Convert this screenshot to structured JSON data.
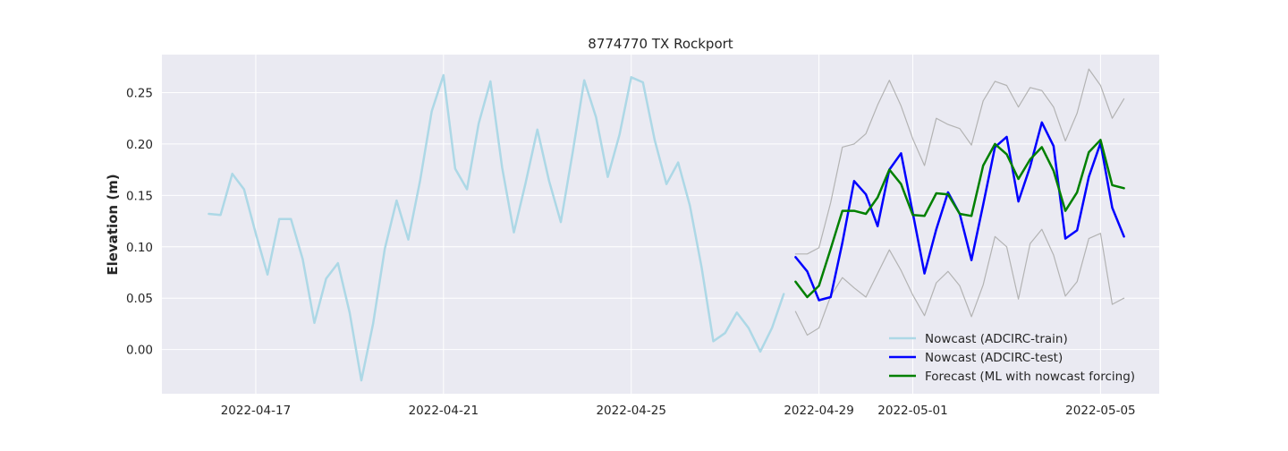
{
  "chart_data": {
    "type": "line",
    "title": "8774770 TX Rockport",
    "xlabel": "",
    "ylabel": "Elevation (m)",
    "x_axis": {
      "type": "date",
      "range": [
        "2022-04-15T00:00",
        "2022-05-06T06:00"
      ],
      "ticks": [
        "2022-04-17",
        "2022-04-21",
        "2022-04-25",
        "2022-04-29",
        "2022-05-01",
        "2022-05-05"
      ]
    },
    "y_axis": {
      "range": [
        -0.043,
        0.287
      ],
      "ticks": [
        0.0,
        0.05,
        0.1,
        0.15,
        0.2,
        0.25
      ],
      "tick_labels": [
        "0.00",
        "0.05",
        "0.10",
        "0.15",
        "0.20",
        "0.25"
      ]
    },
    "grid": true,
    "legend_position": "lower-right",
    "series": [
      {
        "name": "Nowcast (ADCIRC-train)",
        "color": "#add8e6",
        "x": [
          "2022-04-16T00:00",
          "2022-04-16T06:00",
          "2022-04-16T12:00",
          "2022-04-16T18:00",
          "2022-04-17T00:00",
          "2022-04-17T06:00",
          "2022-04-17T12:00",
          "2022-04-17T18:00",
          "2022-04-18T00:00",
          "2022-04-18T06:00",
          "2022-04-18T12:00",
          "2022-04-18T18:00",
          "2022-04-19T00:00",
          "2022-04-19T06:00",
          "2022-04-19T12:00",
          "2022-04-19T18:00",
          "2022-04-20T00:00",
          "2022-04-20T06:00",
          "2022-04-20T12:00",
          "2022-04-20T18:00",
          "2022-04-21T00:00",
          "2022-04-21T06:00",
          "2022-04-21T12:00",
          "2022-04-21T18:00",
          "2022-04-22T00:00",
          "2022-04-22T06:00",
          "2022-04-22T12:00",
          "2022-04-22T18:00",
          "2022-04-23T00:00",
          "2022-04-23T06:00",
          "2022-04-23T12:00",
          "2022-04-23T18:00",
          "2022-04-24T00:00",
          "2022-04-24T06:00",
          "2022-04-24T12:00",
          "2022-04-24T18:00",
          "2022-04-25T00:00",
          "2022-04-25T06:00",
          "2022-04-25T12:00",
          "2022-04-25T18:00",
          "2022-04-26T00:00",
          "2022-04-26T06:00",
          "2022-04-26T12:00",
          "2022-04-26T18:00",
          "2022-04-27T00:00",
          "2022-04-27T06:00",
          "2022-04-27T12:00",
          "2022-04-27T18:00",
          "2022-04-28T00:00",
          "2022-04-28T06:00"
        ],
        "values": [
          0.132,
          0.131,
          0.171,
          0.156,
          0.113,
          0.073,
          0.127,
          0.127,
          0.088,
          0.026,
          0.069,
          0.084,
          0.036,
          -0.03,
          0.025,
          0.098,
          0.145,
          0.107,
          0.164,
          0.232,
          0.267,
          0.176,
          0.156,
          0.22,
          0.261,
          0.177,
          0.114,
          0.162,
          0.214,
          0.164,
          0.124,
          0.191,
          0.262,
          0.226,
          0.168,
          0.209,
          0.265,
          0.26,
          0.204,
          0.161,
          0.182,
          0.14,
          0.08,
          0.008,
          0.016,
          0.036,
          0.021,
          -0.002,
          0.021,
          0.054
        ]
      },
      {
        "name": "Nowcast (ADCIRC-test)",
        "color": "#0000ff",
        "x": [
          "2022-04-28T12:00",
          "2022-04-28T18:00",
          "2022-04-29T00:00",
          "2022-04-29T06:00",
          "2022-04-29T12:00",
          "2022-04-29T18:00",
          "2022-04-30T00:00",
          "2022-04-30T06:00",
          "2022-04-30T12:00",
          "2022-04-30T18:00",
          "2022-05-01T00:00",
          "2022-05-01T06:00",
          "2022-05-01T12:00",
          "2022-05-01T18:00",
          "2022-05-02T00:00",
          "2022-05-02T06:00",
          "2022-05-02T12:00",
          "2022-05-02T18:00",
          "2022-05-03T00:00",
          "2022-05-03T06:00",
          "2022-05-03T12:00",
          "2022-05-03T18:00",
          "2022-05-04T00:00",
          "2022-05-04T06:00",
          "2022-05-04T12:00",
          "2022-05-04T18:00",
          "2022-05-05T00:00",
          "2022-05-05T06:00",
          "2022-05-05T12:00"
        ],
        "values": [
          0.09,
          0.076,
          0.048,
          0.051,
          0.104,
          0.164,
          0.151,
          0.12,
          0.175,
          0.191,
          0.133,
          0.074,
          0.117,
          0.153,
          0.132,
          0.087,
          0.141,
          0.197,
          0.207,
          0.144,
          0.178,
          0.221,
          0.198,
          0.108,
          0.116,
          0.168,
          0.201,
          0.138,
          0.11
        ]
      },
      {
        "name": "Forecast (ML with nowcast forcing)",
        "color": "#008000",
        "x": [
          "2022-04-28T12:00",
          "2022-04-28T18:00",
          "2022-04-29T00:00",
          "2022-04-29T06:00",
          "2022-04-29T12:00",
          "2022-04-29T18:00",
          "2022-04-30T00:00",
          "2022-04-30T06:00",
          "2022-04-30T12:00",
          "2022-04-30T18:00",
          "2022-05-01T00:00",
          "2022-05-01T06:00",
          "2022-05-01T12:00",
          "2022-05-01T18:00",
          "2022-05-02T00:00",
          "2022-05-02T06:00",
          "2022-05-02T12:00",
          "2022-05-02T18:00",
          "2022-05-03T00:00",
          "2022-05-03T06:00",
          "2022-05-03T12:00",
          "2022-05-03T18:00",
          "2022-05-04T00:00",
          "2022-05-04T06:00",
          "2022-05-04T12:00",
          "2022-05-04T18:00",
          "2022-05-05T00:00",
          "2022-05-05T06:00",
          "2022-05-05T12:00"
        ],
        "values": [
          0.066,
          0.051,
          0.062,
          0.098,
          0.135,
          0.135,
          0.132,
          0.148,
          0.175,
          0.161,
          0.131,
          0.13,
          0.152,
          0.151,
          0.132,
          0.13,
          0.179,
          0.2,
          0.19,
          0.166,
          0.185,
          0.197,
          0.174,
          0.135,
          0.153,
          0.192,
          0.204,
          0.16,
          0.157
        ]
      },
      {
        "name": "",
        "role": "upper-bound",
        "color": "#b3b3b3",
        "x": [
          "2022-04-28T12:00",
          "2022-04-28T18:00",
          "2022-04-29T00:00",
          "2022-04-29T06:00",
          "2022-04-29T12:00",
          "2022-04-29T18:00",
          "2022-04-30T00:00",
          "2022-04-30T06:00",
          "2022-04-30T12:00",
          "2022-04-30T18:00",
          "2022-05-01T00:00",
          "2022-05-01T06:00",
          "2022-05-01T12:00",
          "2022-05-01T18:00",
          "2022-05-02T00:00",
          "2022-05-02T06:00",
          "2022-05-02T12:00",
          "2022-05-02T18:00",
          "2022-05-03T00:00",
          "2022-05-03T06:00",
          "2022-05-03T12:00",
          "2022-05-03T18:00",
          "2022-05-04T00:00",
          "2022-05-04T06:00",
          "2022-05-04T12:00",
          "2022-05-04T18:00",
          "2022-05-05T00:00",
          "2022-05-05T06:00",
          "2022-05-05T12:00"
        ],
        "values": [
          0.093,
          0.093,
          0.099,
          0.143,
          0.197,
          0.2,
          0.21,
          0.238,
          0.262,
          0.237,
          0.205,
          0.179,
          0.225,
          0.219,
          0.215,
          0.199,
          0.242,
          0.261,
          0.257,
          0.236,
          0.255,
          0.252,
          0.236,
          0.203,
          0.23,
          0.273,
          0.257,
          0.225,
          0.244
        ]
      },
      {
        "name": "",
        "role": "lower-bound",
        "color": "#b3b3b3",
        "x": [
          "2022-04-28T12:00",
          "2022-04-28T18:00",
          "2022-04-29T00:00",
          "2022-04-29T06:00",
          "2022-04-29T12:00",
          "2022-04-29T18:00",
          "2022-04-30T00:00",
          "2022-04-30T06:00",
          "2022-04-30T12:00",
          "2022-04-30T18:00",
          "2022-05-01T00:00",
          "2022-05-01T06:00",
          "2022-05-01T12:00",
          "2022-05-01T18:00",
          "2022-05-02T00:00",
          "2022-05-02T06:00",
          "2022-05-02T12:00",
          "2022-05-02T18:00",
          "2022-05-03T00:00",
          "2022-05-03T06:00",
          "2022-05-03T12:00",
          "2022-05-03T18:00",
          "2022-05-04T00:00",
          "2022-05-04T06:00",
          "2022-05-04T12:00",
          "2022-05-04T18:00",
          "2022-05-05T00:00",
          "2022-05-05T06:00",
          "2022-05-05T12:00"
        ],
        "values": [
          0.037,
          0.014,
          0.021,
          0.052,
          0.07,
          0.06,
          0.051,
          0.074,
          0.097,
          0.077,
          0.053,
          0.033,
          0.065,
          0.076,
          0.062,
          0.032,
          0.063,
          0.11,
          0.1,
          0.049,
          0.103,
          0.117,
          0.092,
          0.052,
          0.066,
          0.108,
          0.113,
          0.044,
          0.05
        ]
      }
    ]
  }
}
